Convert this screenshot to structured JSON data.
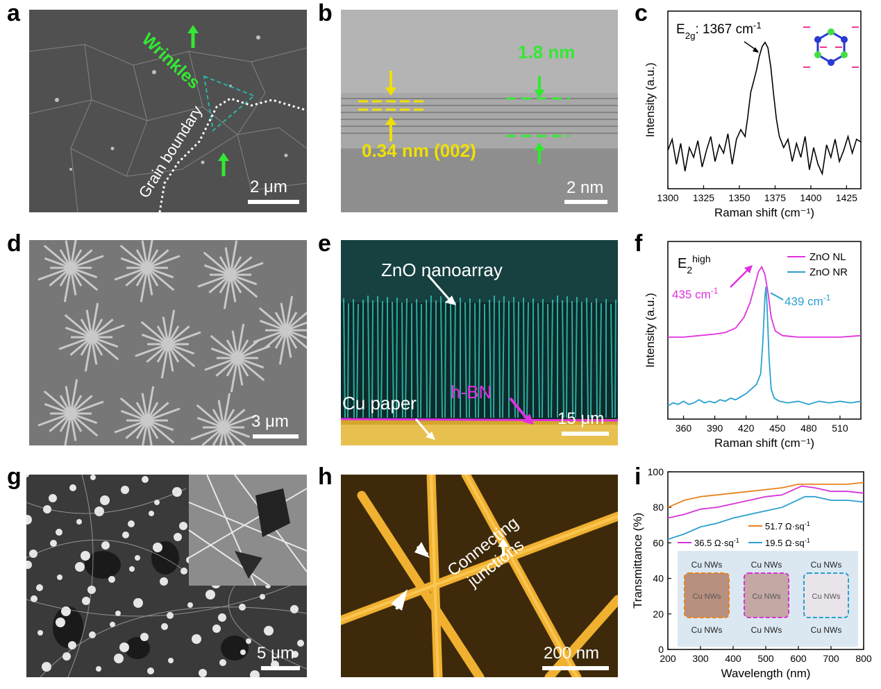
{
  "panel_labels": [
    "a",
    "b",
    "c",
    "d",
    "e",
    "f",
    "g",
    "h",
    "i"
  ],
  "panel_a": {
    "annotation_wrinkles": "Wrinkles",
    "annotation_grain": "Grain boundary",
    "scale_bar": "2 μm"
  },
  "panel_b": {
    "spacing_label": "0.34 nm (002)",
    "thickness_label": "1.8 nm",
    "scale_bar": "2 nm"
  },
  "panel_d": {
    "scale_bar": "3 μm"
  },
  "panel_e": {
    "label_nanoarray": "ZnO nanoarray",
    "label_hbn": "h-BN",
    "label_cu": "Cu paper",
    "scale_bar": "15 μm"
  },
  "panel_g": {
    "scale_bar": "5 μm"
  },
  "panel_h": {
    "label_line1": "Connecting",
    "label_line2": "junctions",
    "scale_bar": "200 nm"
  },
  "panel_i_inset": {
    "tile_label": "Cu NWs",
    "tile_inner_label": "Cu NWs"
  },
  "chart_data": [
    {
      "panel": "c",
      "type": "line",
      "xlabel": "Raman shift (cm⁻¹)",
      "ylabel": "Intensity (a.u.)",
      "xlim": [
        1300,
        1435
      ],
      "xticks": [
        1300,
        1325,
        1350,
        1375,
        1400,
        1425
      ],
      "annotation": "E2g: 1367 cm-1",
      "annotation_parts": {
        "base": "E",
        "sub": "2g",
        "rest": ": 1367 cm",
        "sup": "-1"
      },
      "series": [
        {
          "values": [
            [
              1300,
              0.2
            ],
            [
              1303,
              0.28
            ],
            [
              1306,
              0.1
            ],
            [
              1309,
              0.25
            ],
            [
              1312,
              0.05
            ],
            [
              1315,
              0.22
            ],
            [
              1318,
              0.15
            ],
            [
              1321,
              0.27
            ],
            [
              1324,
              0.08
            ],
            [
              1327,
              0.2
            ],
            [
              1330,
              0.3
            ],
            [
              1333,
              0.12
            ],
            [
              1336,
              0.24
            ],
            [
              1339,
              0.18
            ],
            [
              1342,
              0.32
            ],
            [
              1345,
              0.1
            ],
            [
              1348,
              0.28
            ],
            [
              1351,
              0.35
            ],
            [
              1354,
              0.3
            ],
            [
              1356,
              0.45
            ],
            [
              1358,
              0.62
            ],
            [
              1360,
              0.7
            ],
            [
              1362,
              0.78
            ],
            [
              1364,
              0.88
            ],
            [
              1366,
              0.95
            ],
            [
              1368,
              0.98
            ],
            [
              1370,
              0.94
            ],
            [
              1372,
              0.8
            ],
            [
              1374,
              0.6
            ],
            [
              1376,
              0.42
            ],
            [
              1378,
              0.3
            ],
            [
              1381,
              0.22
            ],
            [
              1384,
              0.28
            ],
            [
              1387,
              0.12
            ],
            [
              1390,
              0.25
            ],
            [
              1393,
              0.15
            ],
            [
              1396,
              0.3
            ],
            [
              1399,
              0.06
            ],
            [
              1402,
              0.22
            ],
            [
              1405,
              0.1
            ],
            [
              1408,
              0.03
            ],
            [
              1411,
              0.24
            ],
            [
              1414,
              0.15
            ],
            [
              1417,
              0.28
            ],
            [
              1420,
              0.12
            ],
            [
              1423,
              0.2
            ],
            [
              1426,
              0.3
            ],
            [
              1429,
              0.18
            ],
            [
              1432,
              0.28
            ],
            [
              1435,
              0.26
            ]
          ]
        }
      ]
    },
    {
      "panel": "f",
      "type": "line",
      "xlabel": "Raman shift (cm⁻¹)",
      "ylabel": "Intensity (a.u.)",
      "xlim": [
        345,
        530
      ],
      "xticks": [
        360,
        390,
        420,
        450,
        480,
        510
      ],
      "annotation": "E2high",
      "annotation_parts": {
        "base": "E",
        "sub": "2",
        "sup": "high"
      },
      "peak_labels": [
        {
          "text": "435 cm-1",
          "base": "435 cm",
          "sup": "-1",
          "color": "#e030e0",
          "x": 435
        },
        {
          "text": "439 cm-1",
          "base": "439 cm",
          "sup": "-1",
          "color": "#2aa0d0",
          "x": 439
        }
      ],
      "legend_position": "top-right",
      "series": [
        {
          "name": "ZnO NL",
          "color": "#e030e0",
          "values": [
            [
              345,
              0.49
            ],
            [
              360,
              0.49
            ],
            [
              375,
              0.5
            ],
            [
              390,
              0.51
            ],
            [
              400,
              0.52
            ],
            [
              410,
              0.55
            ],
            [
              418,
              0.62
            ],
            [
              424,
              0.72
            ],
            [
              428,
              0.82
            ],
            [
              432,
              0.92
            ],
            [
              435,
              0.95
            ],
            [
              438,
              0.9
            ],
            [
              441,
              0.78
            ],
            [
              444,
              0.62
            ],
            [
              448,
              0.53
            ],
            [
              455,
              0.5
            ],
            [
              470,
              0.49
            ],
            [
              490,
              0.49
            ],
            [
              510,
              0.49
            ],
            [
              530,
              0.5
            ]
          ]
        },
        {
          "name": "ZnO NR",
          "color": "#2aa0d0",
          "values": [
            [
              345,
              0.04
            ],
            [
              350,
              0.06
            ],
            [
              355,
              0.05
            ],
            [
              360,
              0.07
            ],
            [
              365,
              0.05
            ],
            [
              370,
              0.06
            ],
            [
              375,
              0.08
            ],
            [
              380,
              0.06
            ],
            [
              385,
              0.07
            ],
            [
              390,
              0.06
            ],
            [
              395,
              0.08
            ],
            [
              400,
              0.07
            ],
            [
              405,
              0.09
            ],
            [
              410,
              0.08
            ],
            [
              415,
              0.1
            ],
            [
              420,
              0.12
            ],
            [
              425,
              0.15
            ],
            [
              430,
              0.18
            ],
            [
              434,
              0.25
            ],
            [
              436,
              0.45
            ],
            [
              438,
              0.75
            ],
            [
              439,
              0.82
            ],
            [
              440,
              0.7
            ],
            [
              442,
              0.35
            ],
            [
              444,
              0.15
            ],
            [
              447,
              0.09
            ],
            [
              452,
              0.07
            ],
            [
              460,
              0.06
            ],
            [
              470,
              0.07
            ],
            [
              480,
              0.05
            ],
            [
              490,
              0.07
            ],
            [
              500,
              0.06
            ],
            [
              510,
              0.07
            ],
            [
              520,
              0.06
            ],
            [
              530,
              0.07
            ]
          ]
        }
      ]
    },
    {
      "panel": "i",
      "type": "line",
      "xlabel": "Wavelength (nm)",
      "ylabel": "Transmittance (%)",
      "xlim": [
        200,
        800
      ],
      "ylim": [
        0,
        100
      ],
      "xticks": [
        200,
        300,
        400,
        500,
        600,
        700,
        800
      ],
      "yticks": [
        0,
        20,
        40,
        60,
        80,
        100
      ],
      "series": [
        {
          "name": "51.7 Ω·sq-1",
          "color": "#e8821e",
          "values": [
            [
              200,
              80
            ],
            [
              250,
              84
            ],
            [
              300,
              86
            ],
            [
              350,
              87
            ],
            [
              400,
              88
            ],
            [
              450,
              89
            ],
            [
              500,
              90
            ],
            [
              550,
              91
            ],
            [
              600,
              93
            ],
            [
              650,
              93
            ],
            [
              700,
              93
            ],
            [
              750,
              93
            ],
            [
              800,
              94
            ]
          ]
        },
        {
          "name": "36.5 Ω·sq-1",
          "color": "#d633d6",
          "values": [
            [
              200,
              74
            ],
            [
              250,
              76
            ],
            [
              300,
              79
            ],
            [
              350,
              80
            ],
            [
              400,
              82
            ],
            [
              450,
              84
            ],
            [
              500,
              86
            ],
            [
              550,
              87
            ],
            [
              610,
              92
            ],
            [
              650,
              91
            ],
            [
              700,
              89
            ],
            [
              750,
              89
            ],
            [
              800,
              88
            ]
          ]
        },
        {
          "name": "19.5 Ω·sq-1",
          "color": "#2a9fd0",
          "values": [
            [
              200,
              62
            ],
            [
              250,
              65
            ],
            [
              300,
              69
            ],
            [
              350,
              71
            ],
            [
              400,
              74
            ],
            [
              450,
              76
            ],
            [
              500,
              78
            ],
            [
              550,
              80
            ],
            [
              620,
              86
            ],
            [
              650,
              86
            ],
            [
              700,
              84
            ],
            [
              750,
              84
            ],
            [
              800,
              83
            ]
          ]
        }
      ]
    }
  ]
}
